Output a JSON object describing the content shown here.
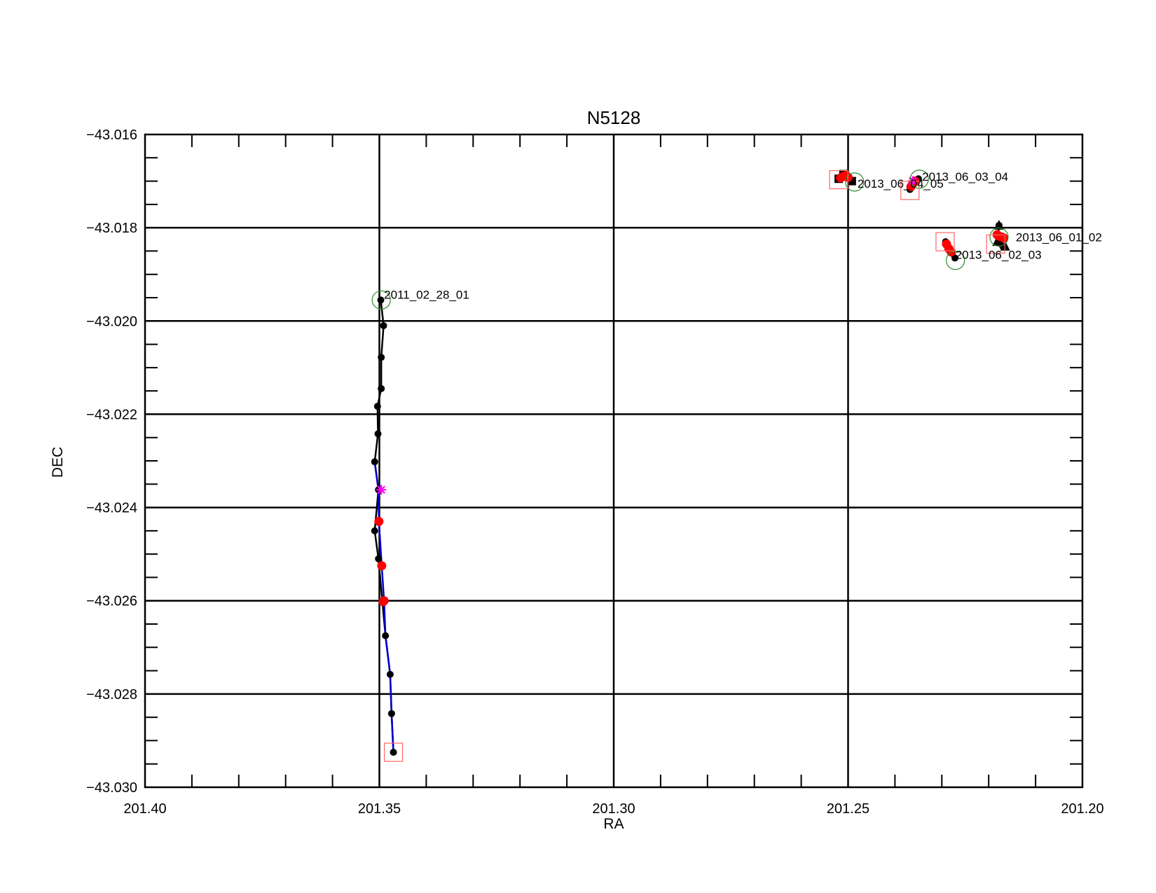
{
  "chart_data": {
    "type": "scatter",
    "title": "N5128",
    "xlabel": "RA",
    "ylabel": "DEC",
    "xlim": [
      201.4,
      201.2
    ],
    "ylim": [
      -43.03,
      -43.016
    ],
    "x_reversed": true,
    "grid": true,
    "x_tick_labels": [
      "201.40",
      "201.35",
      "201.30",
      "201.25",
      "201.20"
    ],
    "y_tick_labels": [
      "−43.016",
      "−43.018",
      "−43.020",
      "−43.022",
      "−43.024",
      "−43.026",
      "−43.028",
      "−43.030"
    ],
    "colors": {
      "track": "#000000",
      "track_segment": "#0000cc",
      "red_point": "#ff0000",
      "magenta_point": "#ff00ff",
      "start_circle": "#2e8b2e",
      "end_square": "#ff6666"
    },
    "series": [
      {
        "label": "2011_02_28_01",
        "track": [
          [
            201.3497,
            -43.01955
          ],
          [
            201.3491,
            -43.0201
          ],
          [
            201.3496,
            -43.02078
          ],
          [
            201.3496,
            -43.02145
          ],
          [
            201.3504,
            -43.02183
          ],
          [
            201.3503,
            -43.02242
          ],
          [
            201.351,
            -43.02302
          ],
          [
            201.3502,
            -43.02362
          ],
          [
            201.351,
            -43.0245
          ],
          [
            201.3502,
            -43.0251
          ],
          [
            201.3487,
            -43.02675
          ],
          [
            201.3477,
            -43.02758
          ],
          [
            201.3474,
            -43.02842
          ],
          [
            201.347,
            -43.02925
          ]
        ],
        "blue_track": [
          [
            201.351,
            -43.02302
          ],
          [
            201.3502,
            -43.02362
          ],
          [
            201.3501,
            -43.0243
          ],
          [
            201.3495,
            -43.02525
          ],
          [
            201.349,
            -43.026
          ],
          [
            201.3487,
            -43.02675
          ],
          [
            201.3477,
            -43.02758
          ],
          [
            201.3474,
            -43.02842
          ],
          [
            201.347,
            -43.02925
          ]
        ],
        "red_points": [
          [
            201.3501,
            -43.0243
          ],
          [
            201.3495,
            -43.02525
          ],
          [
            201.349,
            -43.026
          ],
          [
            201.3492,
            -43.02602
          ]
        ],
        "magenta_points": [
          [
            201.3496,
            -43.02362
          ]
        ],
        "start": [
          201.3496,
          -43.01955
        ],
        "end": [
          201.347,
          -43.02925
        ]
      },
      {
        "label": "2013_06_01_02",
        "track": [
          [
            201.2178,
            -43.01795
          ],
          [
            201.218,
            -43.0182
          ],
          [
            201.2176,
            -43.0183
          ],
          [
            201.217,
            -43.0184
          ]
        ],
        "triangles": [
          [
            201.2178,
            -43.01795
          ],
          [
            201.2182,
            -43.0183
          ],
          [
            201.2165,
            -43.0184
          ]
        ],
        "red_points": [
          [
            201.2182,
            -43.01815
          ],
          [
            201.2178,
            -43.01818
          ],
          [
            201.2172,
            -43.0182
          ],
          [
            201.2168,
            -43.01822
          ]
        ],
        "start": [
          201.2178,
          -43.0182
        ],
        "end": [
          201.2185,
          -43.01835
        ]
      },
      {
        "label": "2013_06_02_03",
        "track": [
          [
            201.2292,
            -43.0183
          ],
          [
            201.2287,
            -43.0184
          ],
          [
            201.2278,
            -43.01855
          ],
          [
            201.2272,
            -43.01865
          ]
        ],
        "red_points": [
          [
            201.229,
            -43.01835
          ],
          [
            201.2285,
            -43.01845
          ],
          [
            201.228,
            -43.01852
          ]
        ],
        "start": [
          201.2271,
          -43.0187
        ],
        "end": [
          201.2293,
          -43.0183
        ]
      },
      {
        "label": "2013_06_03_04",
        "track": [
          [
            201.2368,
            -43.01718
          ],
          [
            201.2362,
            -43.01705
          ],
          [
            201.235,
            -43.01695
          ]
        ],
        "red_points": [
          [
            201.2366,
            -43.01712
          ],
          [
            201.2362,
            -43.01705
          ],
          [
            201.2358,
            -43.017
          ]
        ],
        "magenta_points": [
          [
            201.2362,
            -43.017
          ]
        ],
        "start": [
          201.2348,
          -43.01696
        ],
        "end": [
          201.2368,
          -43.0172
        ]
      },
      {
        "label": "2013_06_04_05",
        "track": [
          [
            201.252,
            -43.01695
          ],
          [
            201.2512,
            -43.0169
          ],
          [
            201.2505,
            -43.01688
          ],
          [
            201.2495,
            -43.01698
          ]
        ],
        "squares": [
          [
            201.252,
            -43.01695
          ],
          [
            201.251,
            -43.01685
          ],
          [
            201.2492,
            -43.017
          ]
        ],
        "red_points": [
          [
            201.2516,
            -43.01693
          ],
          [
            201.251,
            -43.0169
          ],
          [
            201.2504,
            -43.01688
          ],
          [
            201.25,
            -43.01692
          ]
        ],
        "start": [
          201.2486,
          -43.01702
        ],
        "end": [
          201.252,
          -43.01697
        ]
      }
    ]
  }
}
